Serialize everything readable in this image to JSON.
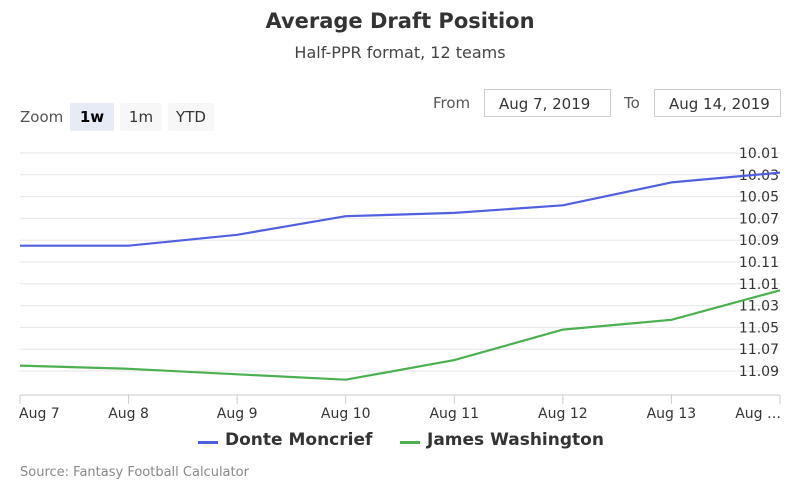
{
  "chart_data": {
    "type": "line",
    "title": "Average Draft Position",
    "subtitle": "Half-PPR format, 12 teams",
    "x": [
      "Aug 7",
      "Aug 8",
      "Aug 9",
      "Aug 10",
      "Aug 11",
      "Aug 12",
      "Aug 13",
      "Aug 14"
    ],
    "x_tick_labels": [
      "Aug 7",
      "Aug 8",
      "Aug 9",
      "Aug 10",
      "Aug 11",
      "Aug 12",
      "Aug 13",
      "Aug …"
    ],
    "y_tick_labels": [
      "10.01",
      "10.03",
      "10.05",
      "10.07",
      "10.09",
      "10.11",
      "11.01",
      "11.03",
      "11.05",
      "11.07",
      "11.09"
    ],
    "y_axis": "reversed draft pick (round.pick), labels on right",
    "ylim": [
      "10.01",
      "11.10"
    ],
    "grid": true,
    "legend": "bottom-center",
    "series": [
      {
        "name": "Donte Moncrief",
        "color": "#5160e0",
        "values": [
          10.095,
          10.095,
          10.085,
          10.068,
          10.065,
          10.058,
          10.037,
          10.028
        ]
      },
      {
        "name": "James Washington",
        "color": "#4caf50",
        "values": [
          11.085,
          11.088,
          11.093,
          11.098,
          11.08,
          11.052,
          11.043,
          11.016
        ]
      }
    ]
  },
  "zoom": {
    "label": "Zoom",
    "buttons": [
      "1w",
      "1m",
      "YTD"
    ],
    "active": "1w"
  },
  "range": {
    "from_label": "From",
    "from_value": "Aug 7, 2019",
    "to_label": "To",
    "to_value": "Aug 14, 2019"
  },
  "source": "Source: Fantasy Football Calculator"
}
